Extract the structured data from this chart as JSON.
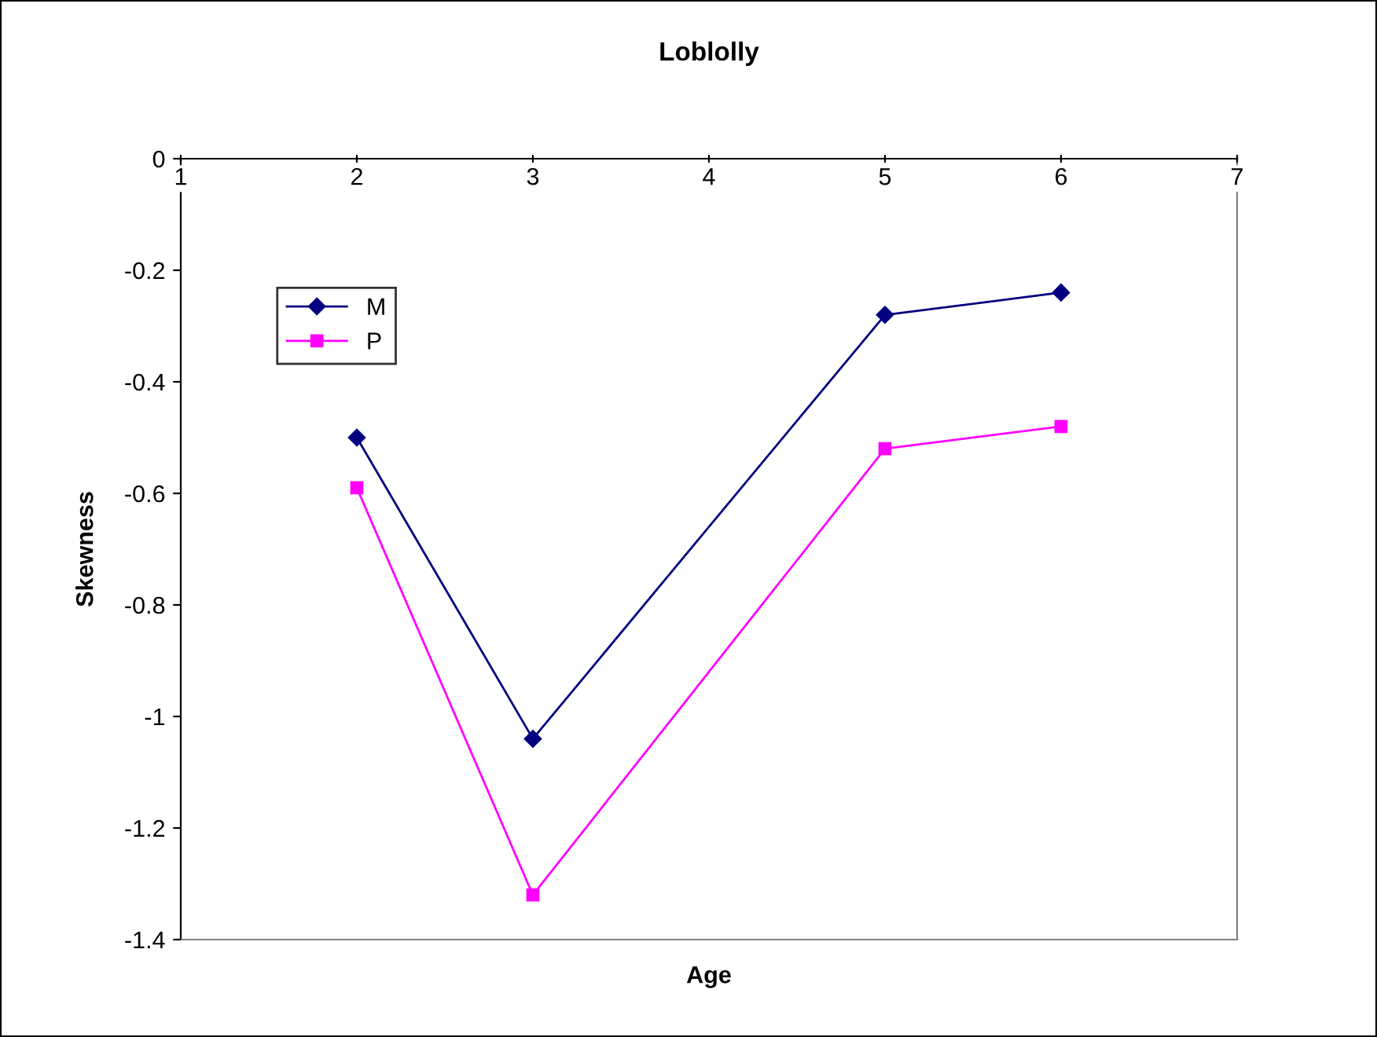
{
  "chart_data": {
    "type": "line",
    "title": "Loblolly",
    "xlabel": "Age",
    "ylabel": "Skewness",
    "x": [
      2,
      3,
      5,
      6
    ],
    "series": [
      {
        "name": "M",
        "color": "#000080",
        "marker": "diamond",
        "values": [
          -0.5,
          -1.04,
          -0.28,
          -0.24
        ]
      },
      {
        "name": "P",
        "color": "#ff00ff",
        "marker": "square",
        "values": [
          -0.59,
          -1.32,
          -0.52,
          -0.48
        ]
      }
    ],
    "xlim": [
      1,
      7
    ],
    "xticks": [
      1,
      2,
      3,
      4,
      5,
      6,
      7
    ],
    "ylim": [
      -1.4,
      0
    ],
    "yticks": [
      0,
      -0.2,
      -0.4,
      -0.6,
      -0.8,
      -1,
      -1.2,
      -1.4
    ],
    "grid": false,
    "legend": "top left"
  }
}
